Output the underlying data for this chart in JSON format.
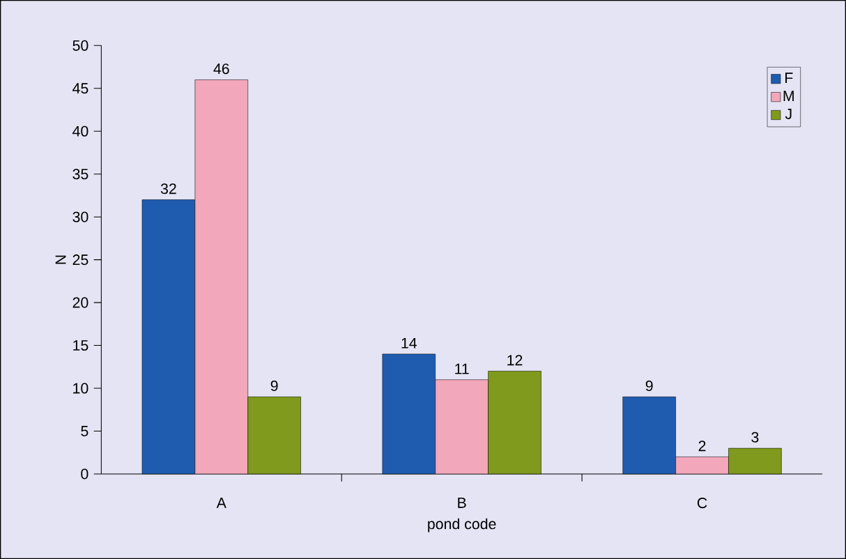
{
  "chart_data": {
    "type": "bar",
    "xlabel": "pond code",
    "ylabel": "N",
    "categories": [
      "A",
      "B",
      "C"
    ],
    "series": [
      {
        "name": "F",
        "color": "#1f5cb0",
        "values": [
          32,
          14,
          9
        ]
      },
      {
        "name": "M",
        "color": "#f2a7ba",
        "values": [
          46,
          11,
          2
        ]
      },
      {
        "name": "J",
        "color": "#7f9a1c",
        "values": [
          9,
          12,
          3
        ]
      }
    ],
    "ylim": [
      0,
      50
    ],
    "yticks": [
      0,
      5,
      10,
      15,
      20,
      25,
      30,
      35,
      40,
      45,
      50
    ],
    "data_labels": true,
    "grid": false,
    "legend": "top right"
  }
}
